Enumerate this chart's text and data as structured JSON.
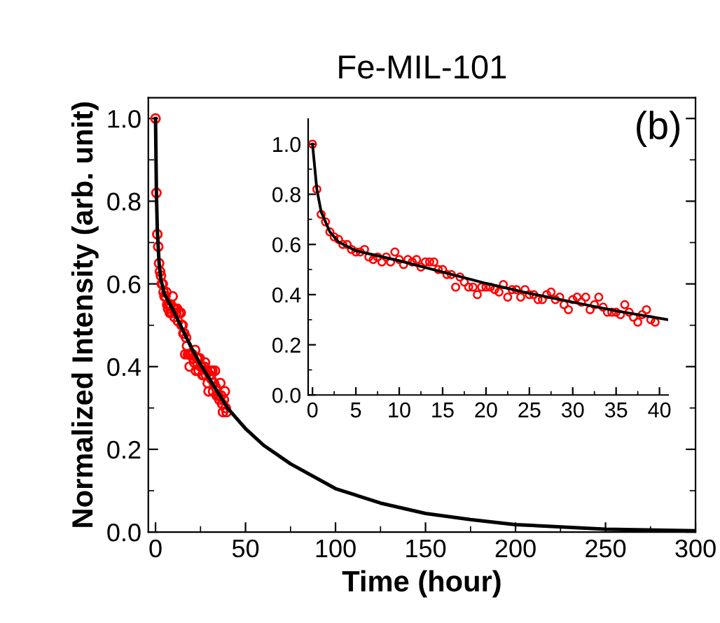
{
  "chart_data": [
    {
      "type": "scatter",
      "title": "Fe-MIL-101",
      "xlabel": "Time (hour)",
      "ylabel": "Normalized Intensity (arb. unit)",
      "annotations": [
        "(b)"
      ],
      "xlim": [
        -4,
        300
      ],
      "ylim": [
        0,
        1.05
      ],
      "xticks": [
        0,
        50,
        100,
        150,
        200,
        250,
        300
      ],
      "yticks": [
        {
          "value": 0,
          "label": "0.0"
        },
        {
          "value": 0.2,
          "label": "0.2"
        },
        {
          "value": 0.4,
          "label": "0.4"
        },
        {
          "value": 0.6,
          "label": "0.6"
        },
        {
          "value": 0.8,
          "label": "0.8"
        },
        {
          "value": 1.0,
          "label": "1.0"
        }
      ],
      "grid": false,
      "legend": false,
      "series": [
        {
          "marker": "circle",
          "color": "#ff0000",
          "x": [
            0,
            0.5,
            1,
            1.5,
            2,
            2.5,
            3,
            3.5,
            4,
            4.5,
            5,
            5.5,
            6,
            6.5,
            7,
            7.5,
            8,
            8.5,
            9,
            9.5,
            10,
            10.5,
            11,
            11.5,
            12,
            12.5,
            13,
            13.5,
            14,
            14.5,
            15,
            15.5,
            16,
            16.5,
            17,
            17.5,
            18,
            18.5,
            19,
            19.5,
            20,
            20.5,
            21,
            21.5,
            22,
            22.5,
            23,
            23.5,
            24,
            24.5,
            25,
            25.5,
            26,
            26.5,
            27,
            27.5,
            28,
            28.5,
            29,
            29.5,
            30,
            30.5,
            31,
            31.5,
            32,
            32.5,
            33,
            33.5,
            34,
            34.5,
            35,
            35.5,
            36,
            36.5,
            37,
            37.5,
            38,
            38.5,
            39,
            39.5
          ],
          "values": [
            1.0,
            0.82,
            0.72,
            0.69,
            0.65,
            0.63,
            0.62,
            0.6,
            0.6,
            0.58,
            0.57,
            0.57,
            0.58,
            0.55,
            0.54,
            0.55,
            0.53,
            0.55,
            0.53,
            0.57,
            0.54,
            0.52,
            0.54,
            0.53,
            0.54,
            0.51,
            0.53,
            null,
            0.53,
            0.5,
            0.5,
            0.48,
            0.48,
            0.43,
            0.47,
            0.45,
            0.43,
            0.43,
            0.4,
            0.43,
            null,
            0.43,
            0.42,
            0.41,
            0.44,
            0.39,
            0.42,
            0.42,
            0.39,
            0.42,
            0.4,
            0.4,
            0.38,
            0.38,
            0.4,
            0.41,
            0.38,
            0.39,
            0.36,
            0.34,
            0.38,
            0.39,
            0.37,
            0.39,
            0.34,
            0.36,
            0.39,
            0.35,
            0.33,
            null,
            0.33,
            0.32,
            0.36,
            0.33,
            0.31,
            0.29,
            0.32,
            0.34,
            0.3,
            0.29
          ]
        },
        {
          "type": "line",
          "color": "#000000",
          "x": [
            0,
            0.5,
            1,
            2,
            3,
            5,
            10,
            15,
            20,
            25,
            30,
            35,
            40,
            50,
            60,
            75,
            100,
            125,
            150,
            175,
            200,
            250,
            300
          ],
          "values": [
            1.0,
            0.82,
            0.73,
            0.65,
            0.61,
            0.575,
            0.535,
            0.49,
            0.445,
            0.405,
            0.37,
            0.335,
            0.3,
            0.25,
            0.21,
            0.165,
            0.105,
            0.07,
            0.045,
            0.03,
            0.018,
            0.007,
            0.003
          ]
        }
      ]
    },
    {
      "type": "scatter",
      "xlim": [
        -0.5,
        41
      ],
      "ylim": [
        0,
        1.1
      ],
      "xticks": [
        0,
        5,
        10,
        15,
        20,
        25,
        30,
        35,
        40
      ],
      "yticks": [
        {
          "value": 0,
          "label": "0.0"
        },
        {
          "value": 0.2,
          "label": "0.2"
        },
        {
          "value": 0.4,
          "label": "0.4"
        },
        {
          "value": 0.6,
          "label": "0.6"
        },
        {
          "value": 0.8,
          "label": "0.8"
        },
        {
          "value": 1.0,
          "label": "1.0"
        }
      ],
      "grid": false,
      "legend": false,
      "series": [
        {
          "marker": "circle",
          "color": "#ff0000",
          "x": [
            0,
            0.5,
            1,
            1.5,
            2,
            2.5,
            3,
            3.5,
            4,
            4.5,
            5,
            5.5,
            6,
            6.5,
            7,
            7.5,
            8,
            8.5,
            9,
            9.5,
            10,
            10.5,
            11,
            11.5,
            12,
            12.5,
            13,
            13.5,
            14,
            14.5,
            15,
            15.5,
            16,
            16.5,
            17,
            17.5,
            18,
            18.5,
            19,
            19.5,
            20,
            20.5,
            21,
            21.5,
            22,
            22.5,
            23,
            23.5,
            24,
            24.5,
            25,
            25.5,
            26,
            26.5,
            27,
            27.5,
            28,
            28.5,
            29,
            29.5,
            30,
            30.5,
            31,
            31.5,
            32,
            32.5,
            33,
            33.5,
            34,
            34.5,
            35,
            35.5,
            36,
            36.5,
            37,
            37.5,
            38,
            38.5,
            39,
            39.5
          ],
          "values": [
            1.0,
            0.82,
            0.72,
            0.69,
            0.65,
            0.63,
            0.62,
            0.6,
            0.6,
            0.58,
            0.57,
            0.57,
            0.58,
            0.55,
            0.54,
            0.55,
            0.53,
            0.55,
            0.53,
            0.57,
            0.54,
            0.52,
            0.54,
            0.53,
            0.54,
            0.51,
            0.53,
            0.53,
            0.53,
            0.5,
            0.5,
            0.48,
            0.48,
            0.43,
            0.47,
            0.45,
            0.43,
            0.43,
            0.4,
            0.43,
            0.43,
            0.43,
            0.42,
            0.41,
            0.44,
            0.39,
            0.42,
            0.42,
            0.39,
            0.42,
            0.4,
            0.4,
            0.38,
            0.38,
            0.4,
            0.41,
            0.38,
            0.39,
            0.36,
            0.34,
            0.38,
            0.39,
            0.37,
            0.39,
            0.34,
            0.36,
            0.39,
            0.35,
            0.33,
            0.33,
            0.33,
            0.32,
            0.36,
            0.33,
            0.31,
            0.29,
            0.32,
            0.34,
            0.3,
            0.29
          ]
        },
        {
          "type": "line",
          "color": "#000000",
          "x": [
            0,
            0.5,
            1,
            2,
            3,
            5,
            10,
            15,
            20,
            25,
            30,
            35,
            41
          ],
          "values": [
            1.0,
            0.82,
            0.73,
            0.65,
            0.61,
            0.575,
            0.535,
            0.49,
            0.445,
            0.405,
            0.37,
            0.335,
            0.3
          ]
        }
      ]
    }
  ]
}
